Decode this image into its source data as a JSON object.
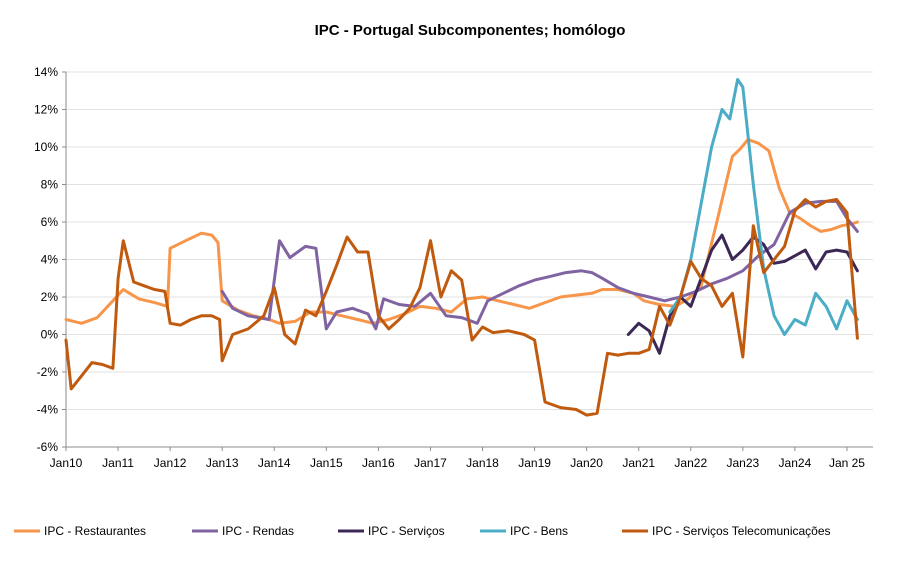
{
  "chart_data": {
    "type": "line",
    "title": "IPC - Portugal Subcomponentes; homólogo",
    "xlabel": "",
    "ylabel": "",
    "x_ticks": [
      "Jan10",
      "Jan11",
      "Jan12",
      "Jan13",
      "Jan14",
      "Jan15",
      "Jan16",
      "Jan17",
      "Jan18",
      "Jan19",
      "Jan20",
      "Jan21",
      "Jan22",
      "Jan23",
      "Jan24",
      "Jan 25"
    ],
    "xlim": [
      2010.0,
      2025.5
    ],
    "ylim": [
      -6,
      14
    ],
    "y_ticks": [
      -6,
      -4,
      -2,
      0,
      2,
      4,
      6,
      8,
      10,
      12,
      14
    ],
    "y_tick_labels": [
      "-6%",
      "-4%",
      "-2%",
      "0%",
      "2%",
      "4%",
      "6%",
      "8%",
      "10%",
      "12%",
      "14%"
    ],
    "grid": true,
    "legend": "bottom",
    "series": [
      {
        "name": "IPC - Restaurantes",
        "color": "#f7964a",
        "x": [
          2010.0,
          2010.3,
          2010.6,
          2010.9,
          2011.1,
          2011.4,
          2011.7,
          2011.95,
          2012.0,
          2012.3,
          2012.6,
          2012.8,
          2012.92,
          2013.0,
          2013.3,
          2013.6,
          2013.9,
          2014.1,
          2014.4,
          2014.7,
          2015.0,
          2015.3,
          2015.6,
          2015.9,
          2016.2,
          2016.5,
          2016.8,
          2017.1,
          2017.4,
          2017.7,
          2018.0,
          2018.3,
          2018.6,
          2018.9,
          2019.2,
          2019.5,
          2019.8,
          2020.1,
          2020.3,
          2020.6,
          2020.9,
          2021.1,
          2021.4,
          2021.7,
          2021.95,
          2022.2,
          2022.5,
          2022.8,
          2022.95,
          2023.1,
          2023.3,
          2023.5,
          2023.7,
          2023.9,
          2024.1,
          2024.3,
          2024.5,
          2024.7,
          2024.9,
          2025.1,
          2025.2
        ],
        "values": [
          0.8,
          0.6,
          0.9,
          1.8,
          2.4,
          1.9,
          1.7,
          1.5,
          4.6,
          5.0,
          5.4,
          5.3,
          4.9,
          1.8,
          1.3,
          1.0,
          0.8,
          0.6,
          0.7,
          1.2,
          1.2,
          1.0,
          0.8,
          0.6,
          0.8,
          1.1,
          1.5,
          1.4,
          1.2,
          1.9,
          2.0,
          1.8,
          1.6,
          1.4,
          1.7,
          2.0,
          2.1,
          2.2,
          2.4,
          2.4,
          2.2,
          1.8,
          1.6,
          1.5,
          1.9,
          2.6,
          6.0,
          9.5,
          9.9,
          10.4,
          10.2,
          9.8,
          7.8,
          6.5,
          6.2,
          5.8,
          5.5,
          5.6,
          5.8,
          5.9,
          6.0
        ]
      },
      {
        "name": "IPC - Rendas",
        "color": "#8064a2",
        "x": [
          2013.0,
          2013.2,
          2013.5,
          2013.9,
          2014.1,
          2014.3,
          2014.6,
          2014.8,
          2015.0,
          2015.2,
          2015.5,
          2015.8,
          2015.95,
          2016.1,
          2016.4,
          2016.7,
          2017.0,
          2017.3,
          2017.6,
          2017.9,
          2018.1,
          2018.4,
          2018.7,
          2019.0,
          2019.3,
          2019.6,
          2019.9,
          2020.1,
          2020.3,
          2020.6,
          2020.9,
          2021.2,
          2021.5,
          2021.8,
          2022.1,
          2022.4,
          2022.7,
          2023.0,
          2023.3,
          2023.6,
          2023.9,
          2024.2,
          2024.5,
          2024.8,
          2025.0,
          2025.2
        ],
        "values": [
          2.3,
          1.4,
          1.0,
          0.8,
          5.0,
          4.1,
          4.7,
          4.6,
          0.3,
          1.2,
          1.4,
          1.1,
          0.3,
          1.9,
          1.6,
          1.5,
          2.2,
          1.0,
          0.9,
          0.6,
          1.8,
          2.2,
          2.6,
          2.9,
          3.1,
          3.3,
          3.4,
          3.3,
          3.0,
          2.5,
          2.2,
          2.0,
          1.8,
          2.0,
          2.3,
          2.7,
          3.0,
          3.4,
          4.2,
          4.8,
          6.5,
          7.0,
          7.1,
          7.1,
          6.2,
          5.5
        ]
      },
      {
        "name": "IPC - Serviços",
        "color": "#3b2856",
        "x": [
          2020.8,
          2021.0,
          2021.2,
          2021.4,
          2021.6,
          2021.8,
          2022.0,
          2022.2,
          2022.4,
          2022.6,
          2022.8,
          2023.0,
          2023.2,
          2023.4,
          2023.6,
          2023.8,
          2024.0,
          2024.2,
          2024.4,
          2024.6,
          2024.8,
          2025.0,
          2025.2
        ],
        "values": [
          0.0,
          0.6,
          0.2,
          -1.0,
          1.0,
          2.0,
          1.5,
          3.0,
          4.5,
          5.3,
          4.0,
          4.5,
          5.2,
          4.8,
          3.8,
          3.9,
          4.2,
          4.5,
          3.5,
          4.4,
          4.5,
          4.4,
          3.4
        ]
      },
      {
        "name": "IPC - Bens",
        "color": "#4bacc6",
        "x": [
          2021.6,
          2021.8,
          2022.0,
          2022.2,
          2022.4,
          2022.6,
          2022.75,
          2022.9,
          2023.0,
          2023.2,
          2023.4,
          2023.6,
          2023.8,
          2024.0,
          2024.2,
          2024.4,
          2024.6,
          2024.8,
          2025.0,
          2025.2
        ],
        "values": [
          1.2,
          2.0,
          4.0,
          7.0,
          10.0,
          12.0,
          11.5,
          13.6,
          13.2,
          8.0,
          3.5,
          1.0,
          0.0,
          0.8,
          0.5,
          2.2,
          1.5,
          0.3,
          1.8,
          0.8
        ]
      },
      {
        "name": "IPC - Serviços Telecomunicações",
        "color": "#c05a0f",
        "x": [
          2010.0,
          2010.1,
          2010.3,
          2010.5,
          2010.7,
          2010.9,
          2011.0,
          2011.1,
          2011.3,
          2011.5,
          2011.7,
          2011.9,
          2012.0,
          2012.2,
          2012.4,
          2012.6,
          2012.8,
          2012.95,
          2013.0,
          2013.2,
          2013.5,
          2013.8,
          2014.0,
          2014.2,
          2014.4,
          2014.6,
          2014.8,
          2015.0,
          2015.2,
          2015.4,
          2015.6,
          2015.8,
          2016.0,
          2016.2,
          2016.4,
          2016.6,
          2016.8,
          2017.0,
          2017.2,
          2017.4,
          2017.6,
          2017.8,
          2018.0,
          2018.2,
          2018.5,
          2018.8,
          2019.0,
          2019.2,
          2019.5,
          2019.8,
          2020.0,
          2020.2,
          2020.4,
          2020.6,
          2020.8,
          2021.0,
          2021.2,
          2021.4,
          2021.6,
          2021.8,
          2022.0,
          2022.2,
          2022.4,
          2022.6,
          2022.8,
          2023.0,
          2023.2,
          2023.4,
          2023.6,
          2023.8,
          2024.0,
          2024.2,
          2024.4,
          2024.6,
          2024.8,
          2025.0,
          2025.2
        ],
        "values": [
          -0.3,
          -2.9,
          -2.2,
          -1.5,
          -1.6,
          -1.8,
          3.0,
          5.0,
          2.8,
          2.6,
          2.4,
          2.3,
          0.6,
          0.5,
          0.8,
          1.0,
          1.0,
          0.8,
          -1.4,
          0.0,
          0.3,
          1.0,
          2.5,
          0.0,
          -0.5,
          1.3,
          1.0,
          2.3,
          3.7,
          5.2,
          4.4,
          4.4,
          1.0,
          0.3,
          0.8,
          1.4,
          2.5,
          5.0,
          2.0,
          3.4,
          2.9,
          -0.3,
          0.4,
          0.1,
          0.2,
          0.0,
          -0.3,
          -3.6,
          -3.9,
          -4.0,
          -4.3,
          -4.2,
          -1.0,
          -1.1,
          -1.0,
          -1.0,
          -0.8,
          1.5,
          0.5,
          2.0,
          3.9,
          3.0,
          2.6,
          1.5,
          2.2,
          -1.2,
          5.8,
          3.3,
          4.0,
          4.7,
          6.6,
          7.2,
          6.8,
          7.1,
          7.2,
          6.5,
          -0.2
        ]
      }
    ]
  }
}
